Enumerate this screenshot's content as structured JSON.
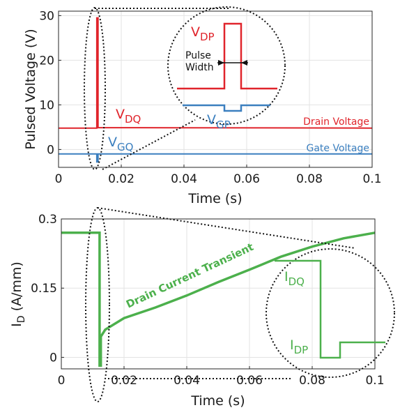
{
  "chart_data": [
    {
      "type": "line",
      "xlabel": "Time (s)",
      "ylabel": "Pulsed Voltage (V)",
      "xlim": [
        0,
        0.1
      ],
      "ylim": [
        -4,
        31
      ],
      "x_ticks": [
        "0",
        "0.02",
        "0.04",
        "0.06",
        "0.08",
        "0.1"
      ],
      "y_ticks": [
        "0",
        "10",
        "20",
        "30"
      ],
      "grid": true,
      "series": [
        {
          "name": "Drain Voltage",
          "color": "#e0242b",
          "x": [
            0,
            0.0122,
            0.0122,
            0.0126,
            0.0126,
            0.1
          ],
          "y": [
            4.8,
            4.8,
            29.5,
            29.5,
            4.9,
            4.8
          ]
        },
        {
          "name": "Gate Voltage",
          "color": "#3b7fbf",
          "x": [
            0,
            0.0122,
            0.0122,
            0.0126,
            0.0126,
            0.1
          ],
          "y": [
            -1.0,
            -1.0,
            -2.8,
            -2.8,
            -1.0,
            -1.0
          ]
        }
      ],
      "annotations": {
        "vdq": {
          "main": "V",
          "sub": "DQ"
        },
        "vgq": {
          "main": "V",
          "sub": "GQ"
        },
        "vdp": {
          "main": "V",
          "sub": "DP"
        },
        "vgp": {
          "main": "V",
          "sub": "GP"
        },
        "pulse_width_1": "Pulse",
        "pulse_width_2": "Width"
      }
    },
    {
      "type": "line",
      "xlabel": "Time (s)",
      "ylabel_main": "I",
      "ylabel_sub": "D",
      "ylabel_rest": " (A/mm)",
      "xlim": [
        0,
        0.1
      ],
      "ylim": [
        -0.025,
        0.3
      ],
      "x_ticks": [
        "0",
        "0.02",
        "0.04",
        "0.06",
        "0.08",
        "0.1"
      ],
      "y_ticks": [
        "0",
        "0.15",
        "0.3"
      ],
      "grid": true,
      "series": [
        {
          "name": "Drain Current Transient",
          "color": "#4cb04c",
          "x": [
            0,
            0.0122,
            0.0122,
            0.0126,
            0.0126,
            0.014,
            0.02,
            0.03,
            0.04,
            0.05,
            0.06,
            0.07,
            0.08,
            0.09,
            0.1
          ],
          "y": [
            0.27,
            0.27,
            -0.018,
            -0.018,
            0.045,
            0.06,
            0.085,
            0.108,
            0.134,
            0.163,
            0.19,
            0.218,
            0.24,
            0.258,
            0.27
          ]
        }
      ],
      "annotations": {
        "transient_label": "Drain Current Transient",
        "idq": {
          "main": "I",
          "sub": "DQ"
        },
        "idp": {
          "main": "I",
          "sub": "DP"
        }
      }
    }
  ],
  "colors": {
    "drain": "#e0242b",
    "gate": "#3b7fbf",
    "current": "#4cb04c"
  }
}
